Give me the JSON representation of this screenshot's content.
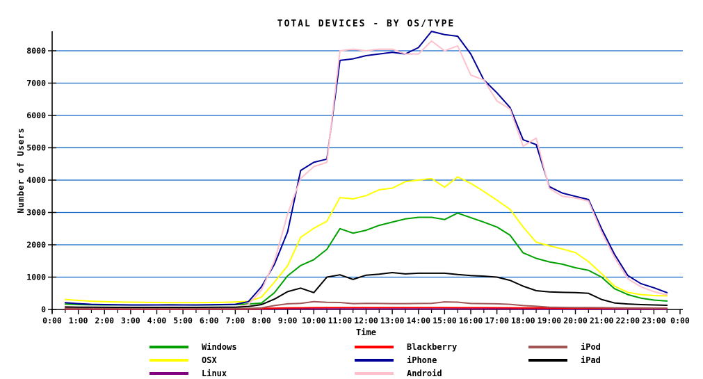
{
  "chart_data": {
    "type": "line",
    "title": "TOTAL DEVICES - BY OS/TYPE",
    "xlabel": "Time",
    "ylabel": "Number of Users",
    "xlim": [
      0,
      24
    ],
    "ylim": [
      0,
      8000
    ],
    "grid": "horizontal",
    "grid_color": "#0F63C5",
    "axis_color": "#000000",
    "y_ticks": [
      0,
      1000,
      2000,
      3000,
      4000,
      5000,
      6000,
      7000,
      8000
    ],
    "x_tick_labels": [
      "0:00",
      "1:00",
      "2:00",
      "3:00",
      "4:00",
      "5:00",
      "6:00",
      "7:00",
      "8:00",
      "9:00",
      "10:00",
      "11:00",
      "12:00",
      "13:00",
      "14:00",
      "15:00",
      "16:00",
      "17:00",
      "18:00",
      "19:00",
      "20:00",
      "21:00",
      "22:00",
      "23:00",
      "0:00"
    ],
    "x": [
      0.5,
      1,
      1.5,
      2,
      2.5,
      3,
      3.5,
      4,
      4.5,
      5,
      5.5,
      6,
      6.5,
      7,
      7.5,
      8,
      8.5,
      9,
      9.5,
      10,
      10.5,
      11,
      11.5,
      12,
      12.5,
      13,
      13.5,
      14,
      14.5,
      15,
      15.5,
      16,
      16.5,
      17,
      17.5,
      18,
      18.5,
      19,
      19.5,
      20,
      20.5,
      21,
      21.5,
      22,
      22.5,
      23,
      23.5
    ],
    "series": [
      {
        "name": "Windows",
        "color": "#00A000",
        "values": [
          165,
          150,
          145,
          140,
          140,
          138,
          138,
          140,
          145,
          140,
          138,
          140,
          145,
          150,
          170,
          195,
          520,
          1040,
          1360,
          1540,
          1860,
          2500,
          2360,
          2450,
          2600,
          2700,
          2800,
          2850,
          2850,
          2780,
          2980,
          2840,
          2700,
          2550,
          2300,
          1750,
          1580,
          1470,
          1400,
          1290,
          1210,
          1000,
          640,
          460,
          350,
          290,
          260
        ]
      },
      {
        "name": "OSX",
        "color": "#FFFF00",
        "values": [
          310,
          280,
          255,
          240,
          230,
          225,
          220,
          215,
          210,
          210,
          210,
          215,
          220,
          230,
          250,
          380,
          850,
          1350,
          2230,
          2510,
          2730,
          3460,
          3420,
          3520,
          3700,
          3750,
          3950,
          4000,
          4050,
          3780,
          4100,
          3900,
          3650,
          3380,
          3100,
          2550,
          2080,
          1970,
          1870,
          1760,
          1480,
          1110,
          720,
          530,
          460,
          430,
          420
        ]
      },
      {
        "name": "Linux",
        "color": "#800080",
        "values": [
          8,
          8,
          7,
          7,
          6,
          6,
          6,
          6,
          6,
          6,
          6,
          6,
          6,
          7,
          8,
          10,
          12,
          14,
          15,
          15,
          15,
          16,
          16,
          16,
          16,
          16,
          16,
          16,
          16,
          16,
          16,
          15,
          15,
          15,
          14,
          13,
          12,
          11,
          10,
          10,
          9,
          9,
          8,
          8,
          7,
          7,
          7
        ]
      },
      {
        "name": "Blackberry",
        "color": "#FF0000",
        "values": [
          15,
          15,
          14,
          14,
          13,
          13,
          13,
          13,
          13,
          13,
          13,
          13,
          14,
          15,
          20,
          30,
          40,
          48,
          52,
          55,
          57,
          58,
          58,
          60,
          60,
          60,
          58,
          58,
          57,
          57,
          56,
          55,
          55,
          54,
          52,
          50,
          48,
          45,
          43,
          42,
          41,
          40,
          38,
          37,
          36,
          35,
          35
        ]
      },
      {
        "name": "iPhone",
        "color": "#000099",
        "values": [
          210,
          180,
          160,
          150,
          145,
          140,
          140,
          140,
          140,
          140,
          140,
          145,
          150,
          160,
          240,
          700,
          1400,
          2400,
          4300,
          4550,
          4650,
          7700,
          7750,
          7850,
          7900,
          7950,
          7900,
          8100,
          8600,
          8500,
          8450,
          7900,
          7100,
          6700,
          6250,
          5250,
          5100,
          3800,
          3600,
          3500,
          3400,
          2500,
          1700,
          1050,
          800,
          670,
          520
        ]
      },
      {
        "name": "Android",
        "color": "#FFC0CB",
        "values": [
          90,
          70,
          55,
          45,
          42,
          40,
          40,
          40,
          40,
          40,
          40,
          42,
          45,
          60,
          150,
          600,
          1500,
          2950,
          4050,
          4420,
          4550,
          8000,
          8050,
          8000,
          8050,
          8050,
          7900,
          7900,
          8300,
          8000,
          8150,
          7250,
          7100,
          6450,
          6200,
          5050,
          5300,
          3750,
          3500,
          3450,
          3350,
          2400,
          1600,
          950,
          700,
          550,
          450
        ]
      },
      {
        "name": "iPod",
        "color": "#A05454",
        "values": [
          30,
          28,
          26,
          25,
          25,
          24,
          24,
          24,
          24,
          24,
          24,
          25,
          26,
          28,
          32,
          50,
          120,
          175,
          190,
          240,
          220,
          215,
          180,
          190,
          185,
          180,
          180,
          185,
          190,
          235,
          225,
          185,
          180,
          175,
          160,
          120,
          100,
          70,
          65,
          60,
          60,
          55,
          50,
          45,
          45,
          40,
          40
        ]
      },
      {
        "name": "iPad",
        "color": "#000000",
        "values": [
          75,
          70,
          68,
          66,
          65,
          65,
          65,
          65,
          65,
          65,
          65,
          66,
          68,
          72,
          90,
          150,
          320,
          550,
          660,
          520,
          1000,
          1070,
          930,
          1060,
          1090,
          1140,
          1100,
          1120,
          1120,
          1120,
          1080,
          1050,
          1030,
          1000,
          900,
          720,
          580,
          545,
          530,
          520,
          500,
          310,
          200,
          170,
          150,
          140,
          130
        ]
      }
    ],
    "legend_position": "bottom",
    "legend_columns": [
      [
        0,
        1,
        2
      ],
      [
        3,
        4,
        5
      ],
      [
        6,
        7
      ]
    ]
  }
}
